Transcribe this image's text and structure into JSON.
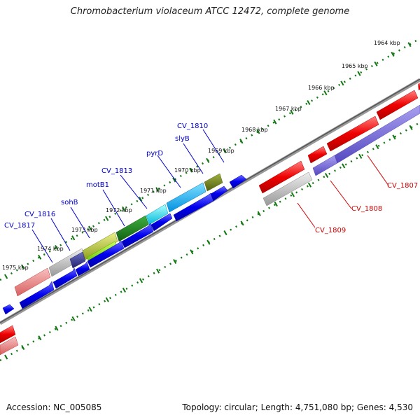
{
  "title": "Chromobacterium violaceum ATCC 12472, complete genome",
  "accession": "Accession: NC_005085",
  "summary": "Topology: circular; Length: 4,751,080 bp; Genes: 4,530",
  "colors": {
    "plus_strand": "#0000ee",
    "minus_strand": "#ee0000",
    "label_plus": "#0000cc",
    "label_minus": "#cc0000",
    "backbone": "#777777",
    "ruler": "#117711"
  },
  "ruler_ticks": [
    "1964 kbp",
    "1965 kbp",
    "1966 kbp",
    "1967 kbp",
    "1968 kbp",
    "1969 kbp",
    "1970 kbp",
    "1971 kbp",
    "1972 kbp",
    "1973 kbp",
    "1974 kbp",
    "1975 kbp"
  ],
  "gene_labels_plus": [
    "CV_1817",
    "CV_1816",
    "sohB",
    "motB1",
    "CV_1813",
    "pyrD",
    "slyB",
    "CV_1810"
  ],
  "gene_labels_minus": [
    "CV_1809",
    "CV_1808",
    "CV_1807"
  ]
}
